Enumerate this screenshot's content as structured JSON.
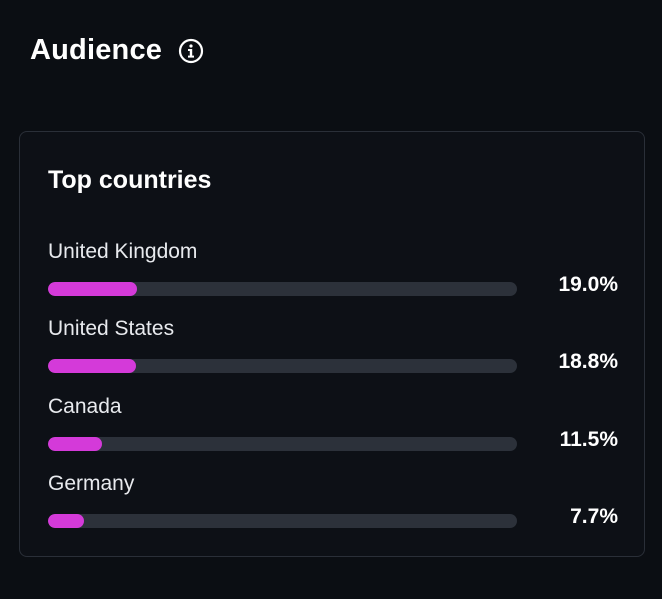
{
  "header": {
    "title": "Audience",
    "info_icon": "info-icon"
  },
  "card": {
    "title": "Top countries",
    "accent_color": "#d43ad9",
    "track_color": "#2c313a",
    "countries": [
      {
        "name": "United Kingdom",
        "value_label": "19.0%",
        "fill_fraction": 0.19
      },
      {
        "name": "United States",
        "value_label": "18.8%",
        "fill_fraction": 0.188
      },
      {
        "name": "Canada",
        "value_label": "11.5%",
        "fill_fraction": 0.115
      },
      {
        "name": "Germany",
        "value_label": "7.7%",
        "fill_fraction": 0.077
      }
    ]
  }
}
